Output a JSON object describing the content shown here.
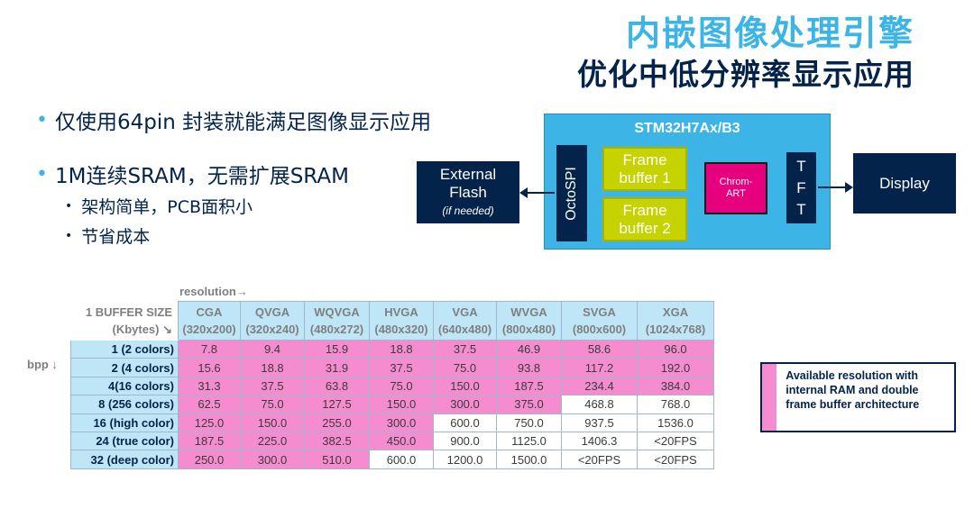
{
  "title": {
    "line1": "内嵌图像处理引擎",
    "line2": "优化中低分辨率显示应用"
  },
  "bullets": {
    "b1": "仅使用64pin 封装就能满足图像显示应用",
    "b2": "1M连续SRAM，无需扩展SRAM",
    "sub": [
      "架构简单，PCB面积小",
      "节省成本"
    ],
    "dot": "•"
  },
  "diagram": {
    "chip_title": "STM32H7Ax/B3",
    "external_flash": "External Flash",
    "external_flash_note": "(if needed)",
    "octospi": "OctoSPI",
    "frame_buffer_1": "Frame\nbuffer 1",
    "frame_buffer_2": "Frame\nbuffer 2",
    "chrom_art": "Chrom-\nART",
    "tft": "T\nF\nT",
    "display": "Display"
  },
  "table": {
    "resolution_label": "resolution→",
    "bpp_label": "bpp ↓",
    "corner_label": "1 BUFFER SIZE\n(Kbytes) ↘",
    "columns": [
      {
        "name": "CGA",
        "res": "(320x200)"
      },
      {
        "name": "QVGA",
        "res": "(320x240)"
      },
      {
        "name": "WQVGA",
        "res": "(480x272)"
      },
      {
        "name": "HVGA",
        "res": "(480x320)"
      },
      {
        "name": "VGA",
        "res": "(640x480)"
      },
      {
        "name": "WVGA",
        "res": "(800x480)"
      },
      {
        "name": "SVGA",
        "res": "(800x600)"
      },
      {
        "name": "XGA",
        "res": "(1024x768)"
      }
    ],
    "rows": [
      {
        "label": "1 (2 colors)",
        "cells": [
          "7.8",
          "9.4",
          "15.9",
          "18.8",
          "37.5",
          "46.9",
          "58.6",
          "96.0"
        ],
        "hl": [
          1,
          1,
          1,
          1,
          1,
          1,
          1,
          1
        ]
      },
      {
        "label": "2 (4 colors)",
        "cells": [
          "15.6",
          "18.8",
          "31.9",
          "37.5",
          "75.0",
          "93.8",
          "117.2",
          "192.0"
        ],
        "hl": [
          1,
          1,
          1,
          1,
          1,
          1,
          1,
          1
        ]
      },
      {
        "label": "4(16 colors)",
        "cells": [
          "31.3",
          "37.5",
          "63.8",
          "75.0",
          "150.0",
          "187.5",
          "234.4",
          "384.0"
        ],
        "hl": [
          1,
          1,
          1,
          1,
          1,
          1,
          1,
          1
        ]
      },
      {
        "label": "8 (256 colors)",
        "cells": [
          "62.5",
          "75.0",
          "127.5",
          "150.0",
          "300.0",
          "375.0",
          "468.8",
          "768.0"
        ],
        "hl": [
          1,
          1,
          1,
          1,
          1,
          1,
          0,
          0
        ]
      },
      {
        "label": "16 (high color)",
        "cells": [
          "125.0",
          "150.0",
          "255.0",
          "300.0",
          "600.0",
          "750.0",
          "937.5",
          "1536.0"
        ],
        "hl": [
          1,
          1,
          1,
          1,
          0,
          0,
          0,
          0
        ]
      },
      {
        "label": "24 (true color)",
        "cells": [
          "187.5",
          "225.0",
          "382.5",
          "450.0",
          "900.0",
          "1125.0",
          "1406.3",
          "<20FPS"
        ],
        "hl": [
          1,
          1,
          1,
          1,
          0,
          0,
          0,
          0
        ]
      },
      {
        "label": "32 (deep color)",
        "cells": [
          "250.0",
          "300.0",
          "510.0",
          "600.0",
          "1200.0",
          "1500.0",
          "<20FPS",
          "<20FPS"
        ],
        "hl": [
          1,
          1,
          1,
          0,
          0,
          0,
          0,
          0
        ]
      }
    ],
    "highlight_color": "#f48ccf"
  },
  "legend": {
    "text": "Available resolution with internal RAM and double frame buffer architecture"
  }
}
